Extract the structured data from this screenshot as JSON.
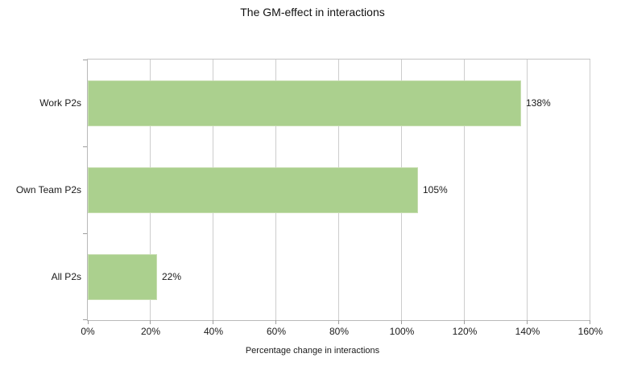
{
  "chart_data": {
    "type": "bar",
    "orientation": "horizontal",
    "title": "The GM-effect in interactions",
    "categories": [
      "Work P2s",
      "Own Team P2s",
      "All P2s"
    ],
    "values": [
      138,
      105,
      22
    ],
    "value_labels": [
      "138%",
      "105%",
      "22%"
    ],
    "xlabel": "Percentage change in interactions",
    "ylabel": "",
    "xlim": [
      0,
      160
    ],
    "xtick_values": [
      0,
      20,
      40,
      60,
      80,
      100,
      120,
      140,
      160
    ],
    "xtick_labels": [
      "0%",
      "20%",
      "40%",
      "60%",
      "80%",
      "100%",
      "120%",
      "140%",
      "160%"
    ],
    "grid": true,
    "legend": false,
    "colors": {
      "bar_fill": "#abd08e",
      "bar_border": "#c6ddaf",
      "gridline": "#cdcdcd",
      "axis": "#b9b9b9",
      "tick": "#9e9e9e",
      "text": "#1a1a1a"
    }
  }
}
